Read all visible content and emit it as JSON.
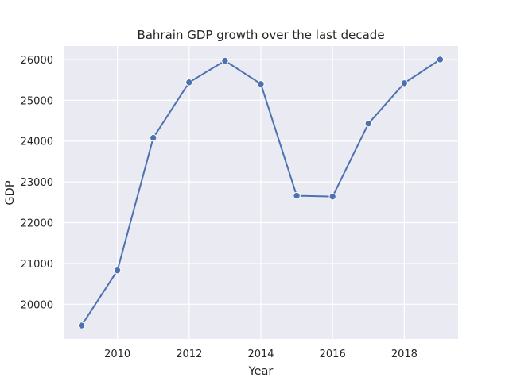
{
  "chart_data": {
    "type": "line",
    "title": "Bahrain GDP growth over the last decade",
    "xlabel": "Year",
    "ylabel": "GDP",
    "x": [
      2009,
      2010,
      2011,
      2012,
      2013,
      2014,
      2015,
      2016,
      2017,
      2018,
      2019
    ],
    "series": [
      {
        "values": [
          19480,
          20830,
          24080,
          25440,
          25970,
          25400,
          22660,
          22640,
          24430,
          25420,
          26000
        ]
      }
    ],
    "xlim": [
      2008.5,
      2019.5
    ],
    "ylim": [
      19150,
      26330
    ],
    "xticks": [
      2010,
      2012,
      2014,
      2016,
      2018
    ],
    "yticks": [
      20000,
      21000,
      22000,
      23000,
      24000,
      25000,
      26000
    ],
    "grid": true,
    "line_color": "#4c72b0",
    "plot_background": "#eaeaf2"
  }
}
